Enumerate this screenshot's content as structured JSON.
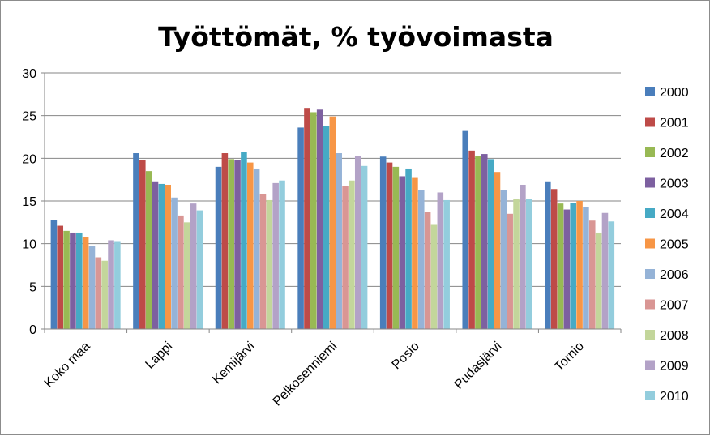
{
  "chart_data": {
    "type": "bar",
    "title": "Työttömät, % työvoimasta",
    "xlabel": "",
    "ylabel": "",
    "ylim": [
      0,
      30
    ],
    "yticks": [
      0,
      5,
      10,
      15,
      20,
      25,
      30
    ],
    "grid": true,
    "legend_position": "right",
    "categories": [
      "Koko maa",
      "Lappi",
      "Kemijärvi",
      "Pelkosenniemi",
      "Posio",
      "Pudasjärvi",
      "Tornio"
    ],
    "series": [
      {
        "name": "2000",
        "color": "#4a7ebb",
        "values": [
          12.8,
          20.6,
          19.0,
          23.6,
          20.2,
          23.2,
          17.3
        ]
      },
      {
        "name": "2001",
        "color": "#be4b48",
        "values": [
          12.1,
          19.8,
          20.6,
          25.9,
          19.5,
          20.9,
          16.4
        ]
      },
      {
        "name": "2002",
        "color": "#98b954",
        "values": [
          11.5,
          18.5,
          19.9,
          25.4,
          19.0,
          20.3,
          14.7
        ]
      },
      {
        "name": "2003",
        "color": "#7d60a0",
        "values": [
          11.3,
          17.3,
          19.8,
          25.7,
          17.9,
          20.5,
          14.0
        ]
      },
      {
        "name": "2004",
        "color": "#46aac5",
        "values": [
          11.3,
          17.0,
          20.7,
          23.8,
          18.8,
          19.9,
          14.8
        ]
      },
      {
        "name": "2005",
        "color": "#f79646",
        "values": [
          10.8,
          16.9,
          19.5,
          24.9,
          17.7,
          18.4,
          15.0
        ]
      },
      {
        "name": "2006",
        "color": "#95b3d7",
        "values": [
          9.7,
          15.4,
          18.8,
          20.6,
          16.3,
          16.3,
          14.3
        ]
      },
      {
        "name": "2007",
        "color": "#d99694",
        "values": [
          8.4,
          13.3,
          15.8,
          16.8,
          13.7,
          13.5,
          12.7
        ]
      },
      {
        "name": "2008",
        "color": "#c3d69b",
        "values": [
          8.0,
          12.5,
          15.1,
          17.4,
          12.2,
          15.2,
          11.3
        ]
      },
      {
        "name": "2009",
        "color": "#b3a2c7",
        "values": [
          10.4,
          14.7,
          17.1,
          20.3,
          16.0,
          16.9,
          13.6
        ]
      },
      {
        "name": "2010",
        "color": "#93cddd",
        "values": [
          10.3,
          13.9,
          17.4,
          19.1,
          15.1,
          15.2,
          12.6
        ]
      }
    ]
  }
}
